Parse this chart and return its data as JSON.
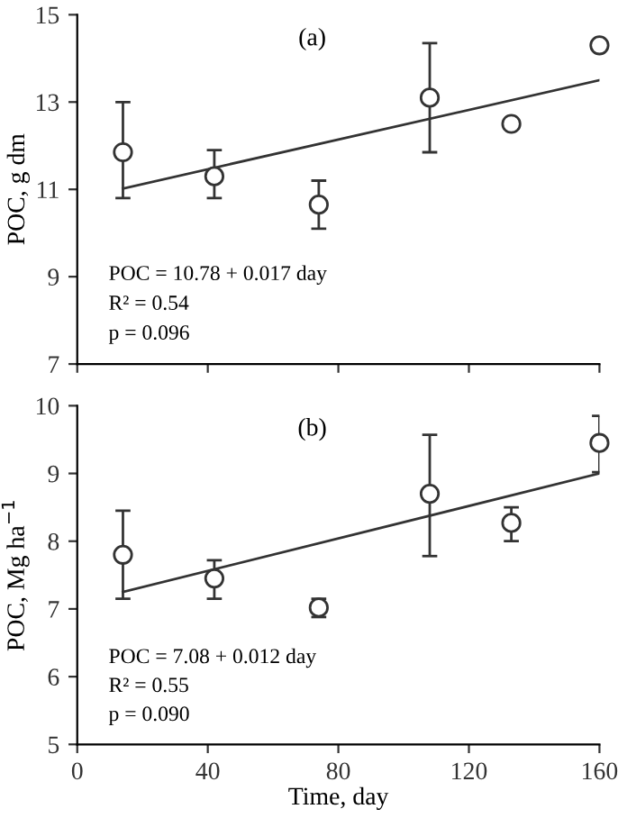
{
  "chart_data": [
    {
      "type": "scatter",
      "ylabel": "POC, g dm",
      "annotations": [
        "(a)",
        "POC = 10.78 + 0.017 day",
        "R² = 0.54",
        "p = 0.096"
      ],
      "xlim": [
        0,
        160
      ],
      "xticks": [
        0,
        40,
        80,
        120,
        160
      ],
      "ylim": [
        7,
        15
      ],
      "yticks": [
        7,
        9,
        11,
        13,
        15
      ],
      "tick_labels": "y",
      "grid": false,
      "legend": false,
      "series": [
        {
          "color": "#333333",
          "marker": "circle",
          "x": [
            14,
            42,
            74,
            108,
            133,
            160
          ],
          "values": [
            11.85,
            11.3,
            10.65,
            13.1,
            12.5,
            14.3
          ],
          "errors": [
            [
              10.8,
              13.0
            ],
            [
              10.8,
              11.9
            ],
            [
              10.1,
              11.2
            ],
            [
              11.85,
              14.35
            ],
            [
              12.4,
              12.6
            ],
            [
              14.2,
              14.4
            ]
          ]
        },
        {
          "type": "line",
          "color": "#333333",
          "marker": "none",
          "line_style": "solid",
          "x": [
            14,
            160
          ],
          "values": [
            11.02,
            13.5
          ]
        }
      ]
    },
    {
      "type": "scatter",
      "xlabel": "Time, day",
      "ylabel": "POC, Mg ha$^{−1}$",
      "annotations": [
        "(b)",
        "POC = 7.08 + 0.012 day",
        "R² = 0.55",
        "p = 0.090"
      ],
      "xlim": [
        0,
        160
      ],
      "xticks": [
        0,
        40,
        80,
        120,
        160
      ],
      "ylim": [
        5,
        10
      ],
      "yticks": [
        5,
        6,
        7,
        8,
        9,
        10
      ],
      "grid": false,
      "legend": false,
      "series": [
        {
          "color": "#333333",
          "marker": "circle",
          "x": [
            14,
            42,
            74,
            108,
            133,
            160
          ],
          "values": [
            7.8,
            7.45,
            7.02,
            8.7,
            8.27,
            9.45
          ],
          "errors": [
            [
              7.15,
              8.45
            ],
            [
              7.15,
              7.72
            ],
            [
              6.88,
              7.15
            ],
            [
              7.78,
              9.57
            ],
            [
              8.0,
              8.5
            ],
            [
              9.02,
              9.85
            ]
          ]
        },
        {
          "type": "line",
          "color": "#333333",
          "marker": "none",
          "line_style": "solid",
          "x": [
            14,
            160
          ],
          "values": [
            7.25,
            9.0
          ]
        }
      ]
    }
  ]
}
